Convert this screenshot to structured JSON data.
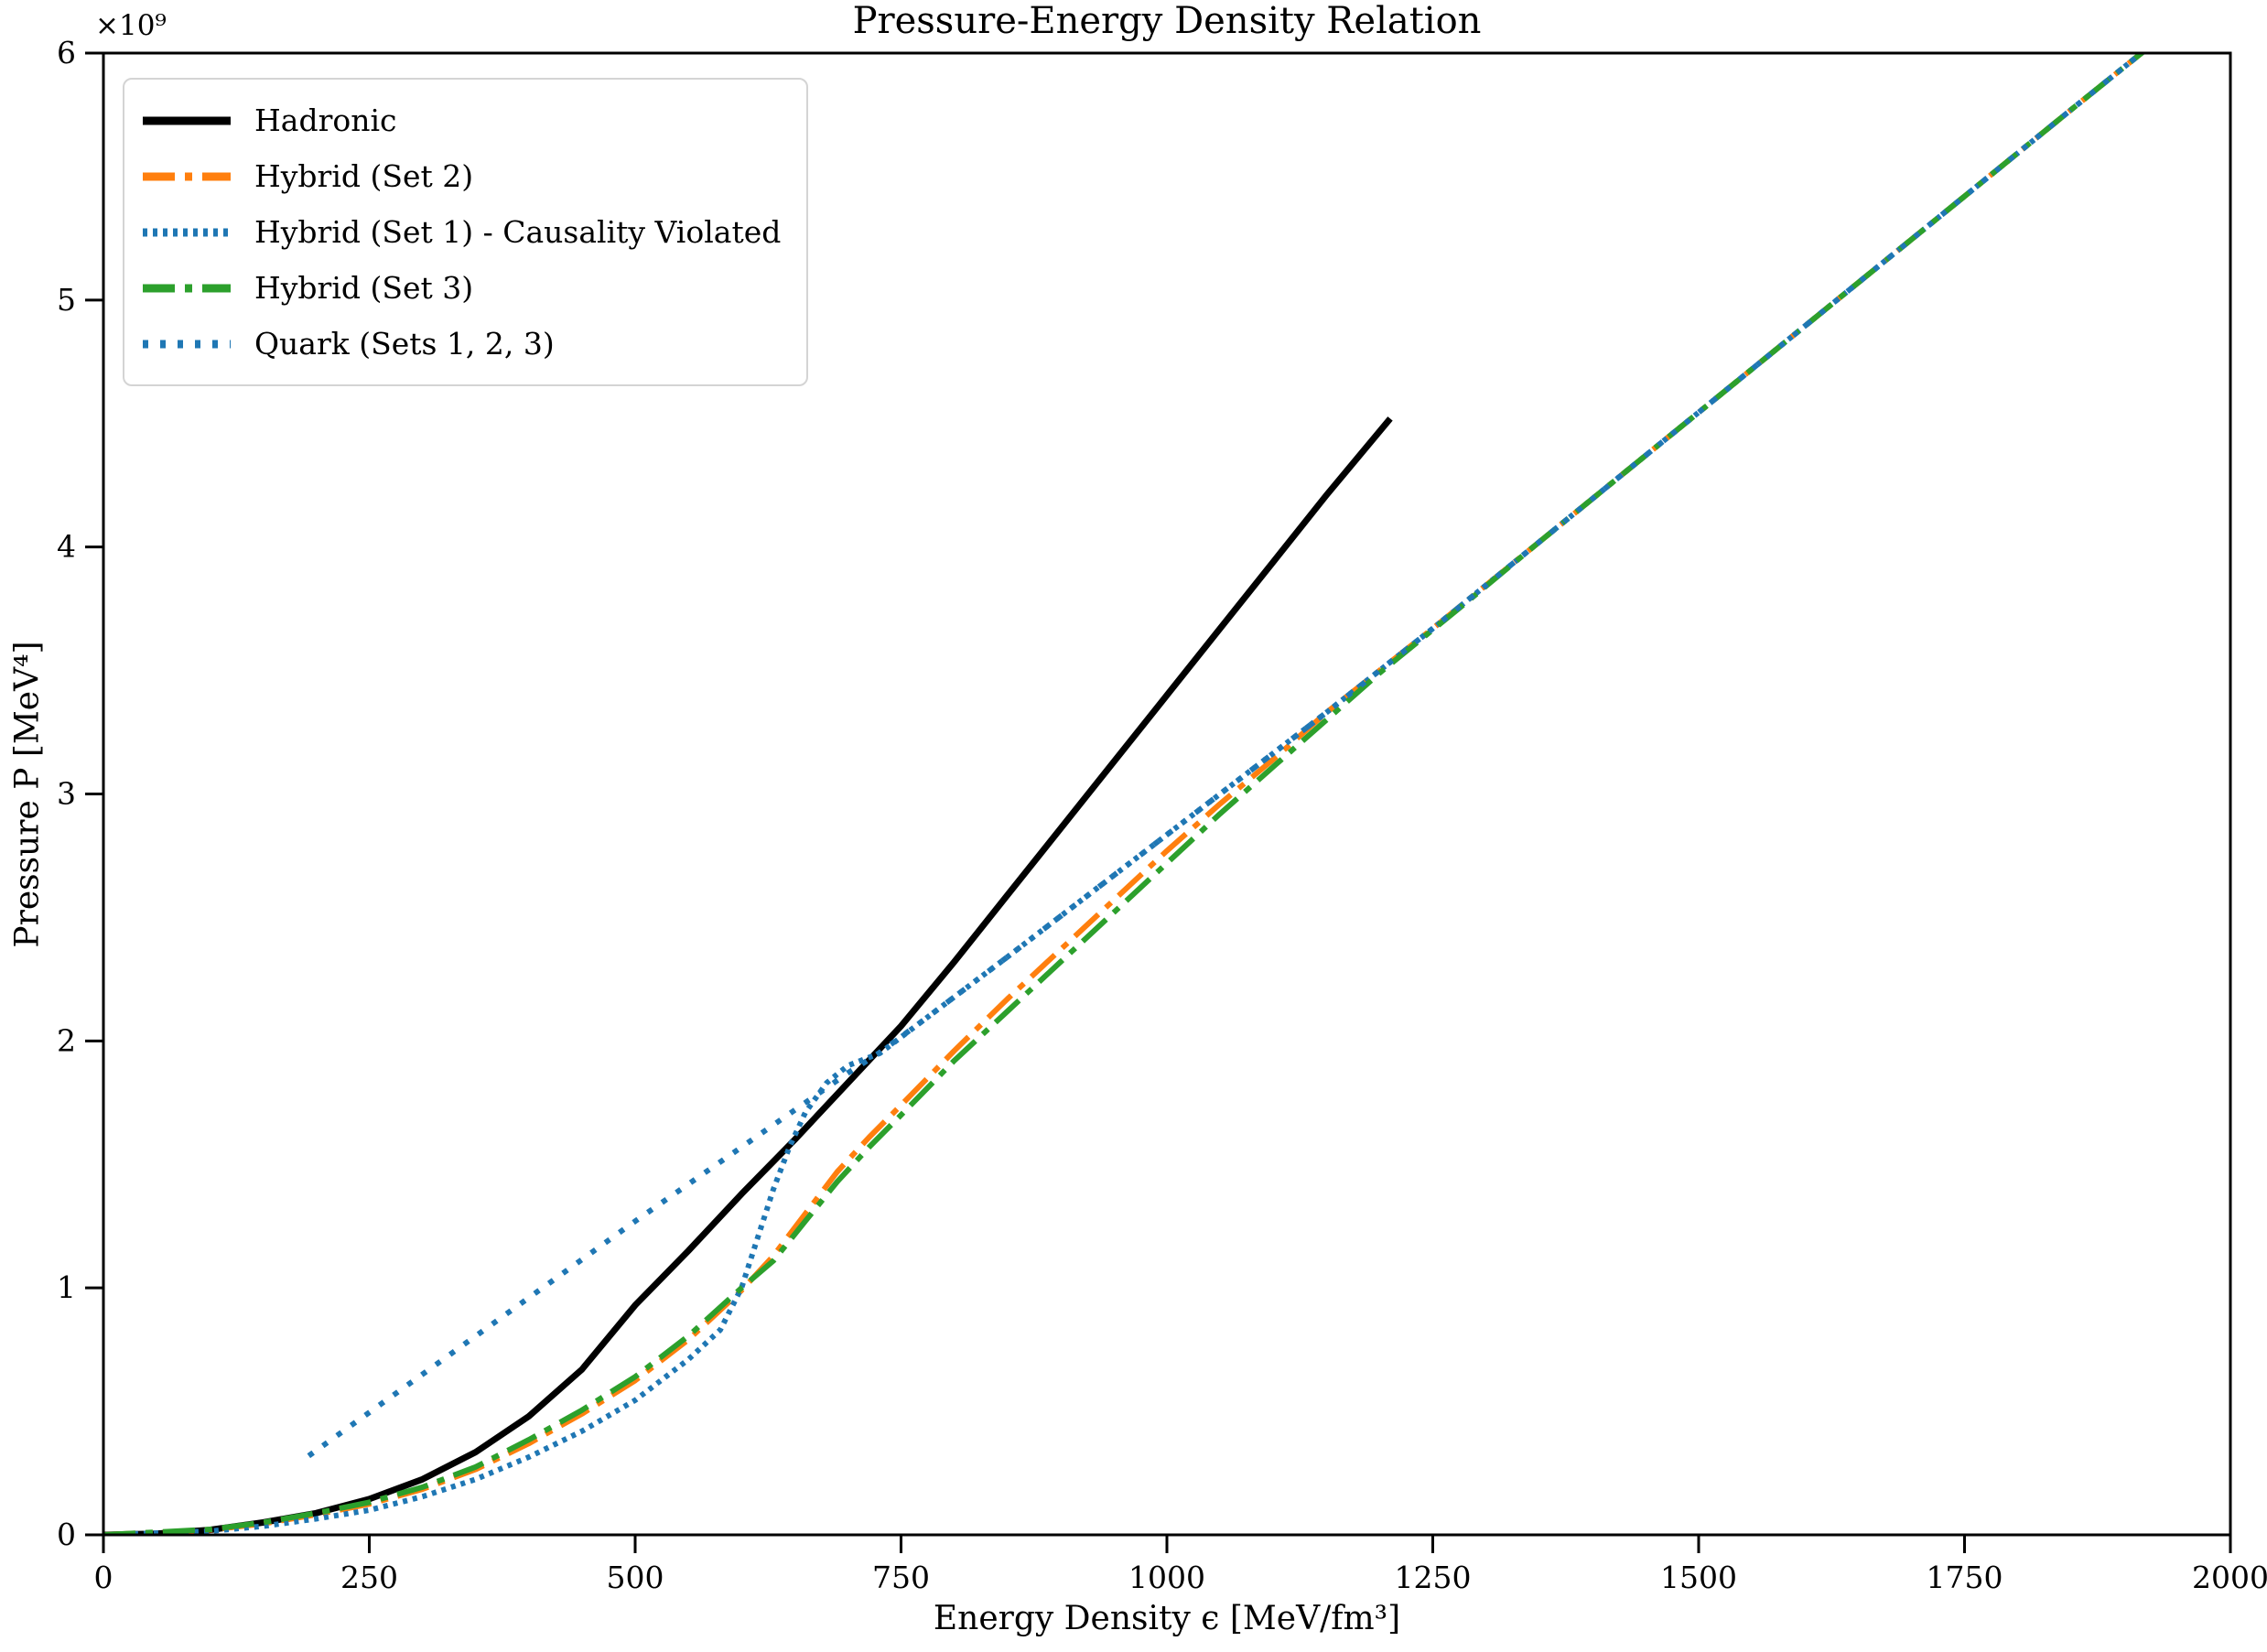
{
  "chart_data": {
    "type": "line",
    "title": "Pressure-Energy Density Relation",
    "xlabel": "Energy Density ϵ [MeV/fm³]",
    "ylabel": "Pressure P [MeV⁴]",
    "y_offset_text": "×10⁹",
    "y_value_scale": "1e9",
    "xlim": [
      0,
      2000
    ],
    "ylim": [
      0,
      6
    ],
    "grid": false,
    "legend_position": "upper left",
    "x_ticks": {
      "values": [
        0,
        250,
        500,
        750,
        1000,
        1250,
        1500,
        1750,
        2000
      ],
      "labels": [
        "0",
        "250",
        "500",
        "750",
        "1000",
        "1250",
        "1500",
        "1750",
        "2000"
      ]
    },
    "y_ticks": {
      "values": [
        0,
        1,
        2,
        3,
        4,
        5,
        6
      ],
      "labels": [
        "0",
        "1",
        "2",
        "3",
        "4",
        "5",
        "6"
      ]
    },
    "series": [
      {
        "label": "Hadronic",
        "color": "#000000",
        "dash": "solid",
        "width": 7,
        "points": [
          [
            0,
            0
          ],
          [
            50,
            0.005
          ],
          [
            100,
            0.02
          ],
          [
            150,
            0.05
          ],
          [
            200,
            0.088
          ],
          [
            250,
            0.145
          ],
          [
            300,
            0.225
          ],
          [
            350,
            0.335
          ],
          [
            400,
            0.48
          ],
          [
            450,
            0.67
          ],
          [
            500,
            0.93
          ],
          [
            550,
            1.15
          ],
          [
            600,
            1.38
          ],
          [
            650,
            1.6
          ],
          [
            700,
            1.83
          ],
          [
            750,
            2.06
          ],
          [
            800,
            2.32
          ],
          [
            850,
            2.59
          ],
          [
            900,
            2.86
          ],
          [
            950,
            3.13
          ],
          [
            1000,
            3.4
          ],
          [
            1050,
            3.67
          ],
          [
            1100,
            3.94
          ],
          [
            1150,
            4.21
          ],
          [
            1210,
            4.52
          ]
        ]
      },
      {
        "label": "Hybrid (Set 2)",
        "color": "#ff7f0e",
        "dash": "dashdot",
        "width": 6,
        "points": [
          [
            0,
            0
          ],
          [
            100,
            0.02
          ],
          [
            150,
            0.045
          ],
          [
            200,
            0.082
          ],
          [
            250,
            0.125
          ],
          [
            300,
            0.185
          ],
          [
            350,
            0.265
          ],
          [
            400,
            0.37
          ],
          [
            450,
            0.49
          ],
          [
            500,
            0.625
          ],
          [
            550,
            0.79
          ],
          [
            600,
            0.99
          ],
          [
            630,
            1.13
          ],
          [
            660,
            1.3
          ],
          [
            690,
            1.47
          ],
          [
            720,
            1.61
          ],
          [
            750,
            1.74
          ],
          [
            800,
            1.96
          ],
          [
            850,
            2.17
          ],
          [
            900,
            2.37
          ],
          [
            950,
            2.57
          ],
          [
            1000,
            2.77
          ],
          [
            1050,
            2.96
          ],
          [
            1100,
            3.14
          ],
          [
            1150,
            3.33
          ],
          [
            1250,
            3.67
          ],
          [
            1350,
            4.02
          ],
          [
            1450,
            4.37
          ],
          [
            1550,
            4.72
          ],
          [
            1650,
            5.07
          ],
          [
            1750,
            5.42
          ],
          [
            1850,
            5.77
          ],
          [
            1928,
            6.04
          ]
        ]
      },
      {
        "label": "Hybrid (Set 1) - Causality Violated",
        "color": "#1f77b4",
        "dash": "dotted-dense",
        "width": 6,
        "points": [
          [
            0,
            0
          ],
          [
            100,
            0.015
          ],
          [
            150,
            0.035
          ],
          [
            200,
            0.065
          ],
          [
            250,
            0.1
          ],
          [
            300,
            0.155
          ],
          [
            350,
            0.225
          ],
          [
            400,
            0.315
          ],
          [
            450,
            0.42
          ],
          [
            500,
            0.545
          ],
          [
            550,
            0.71
          ],
          [
            580,
            0.83
          ],
          [
            600,
            1.0
          ],
          [
            615,
            1.2
          ],
          [
            630,
            1.4
          ],
          [
            645,
            1.57
          ],
          [
            660,
            1.71
          ],
          [
            680,
            1.83
          ],
          [
            700,
            1.9
          ],
          [
            730,
            1.95
          ],
          [
            770,
            2.08
          ],
          [
            850,
            2.34
          ],
          [
            950,
            2.67
          ],
          [
            1050,
            3.0
          ],
          [
            1150,
            3.33
          ],
          [
            1250,
            3.67
          ],
          [
            1350,
            4.02
          ],
          [
            1450,
            4.37
          ],
          [
            1550,
            4.72
          ],
          [
            1650,
            5.07
          ],
          [
            1750,
            5.42
          ],
          [
            1850,
            5.77
          ],
          [
            1928,
            6.04
          ]
        ]
      },
      {
        "label": "Hybrid (Set 3)",
        "color": "#2ca02c",
        "dash": "dashdot",
        "width": 6,
        "points": [
          [
            0,
            0
          ],
          [
            100,
            0.022
          ],
          [
            150,
            0.05
          ],
          [
            200,
            0.088
          ],
          [
            250,
            0.132
          ],
          [
            300,
            0.193
          ],
          [
            350,
            0.275
          ],
          [
            400,
            0.385
          ],
          [
            450,
            0.505
          ],
          [
            500,
            0.64
          ],
          [
            550,
            0.805
          ],
          [
            600,
            1.0
          ],
          [
            630,
            1.11
          ],
          [
            660,
            1.27
          ],
          [
            690,
            1.43
          ],
          [
            720,
            1.57
          ],
          [
            750,
            1.7
          ],
          [
            800,
            1.92
          ],
          [
            850,
            2.12
          ],
          [
            900,
            2.32
          ],
          [
            950,
            2.52
          ],
          [
            1000,
            2.72
          ],
          [
            1050,
            2.92
          ],
          [
            1100,
            3.11
          ],
          [
            1150,
            3.3
          ],
          [
            1200,
            3.49
          ],
          [
            1280,
            3.77
          ],
          [
            1350,
            4.02
          ],
          [
            1450,
            4.37
          ],
          [
            1550,
            4.72
          ],
          [
            1650,
            5.07
          ],
          [
            1750,
            5.42
          ],
          [
            1850,
            5.77
          ],
          [
            1928,
            6.04
          ]
        ]
      },
      {
        "label": "Quark (Sets 1, 2, 3)",
        "color": "#1f77b4",
        "dash": "dotted-sparse",
        "width": 6,
        "points": [
          [
            193,
            0.32
          ],
          [
            300,
            0.65
          ],
          [
            400,
            0.96
          ],
          [
            500,
            1.27
          ],
          [
            600,
            1.57
          ],
          [
            650,
            1.72
          ],
          [
            700,
            1.87
          ],
          [
            729,
            1.95
          ],
          [
            770,
            2.08
          ],
          [
            850,
            2.34
          ],
          [
            950,
            2.67
          ],
          [
            1050,
            3.0
          ],
          [
            1150,
            3.33
          ],
          [
            1250,
            3.67
          ],
          [
            1350,
            4.02
          ],
          [
            1450,
            4.37
          ],
          [
            1550,
            4.72
          ],
          [
            1650,
            5.07
          ],
          [
            1750,
            5.42
          ],
          [
            1850,
            5.77
          ],
          [
            1928,
            6.04
          ]
        ]
      }
    ]
  }
}
